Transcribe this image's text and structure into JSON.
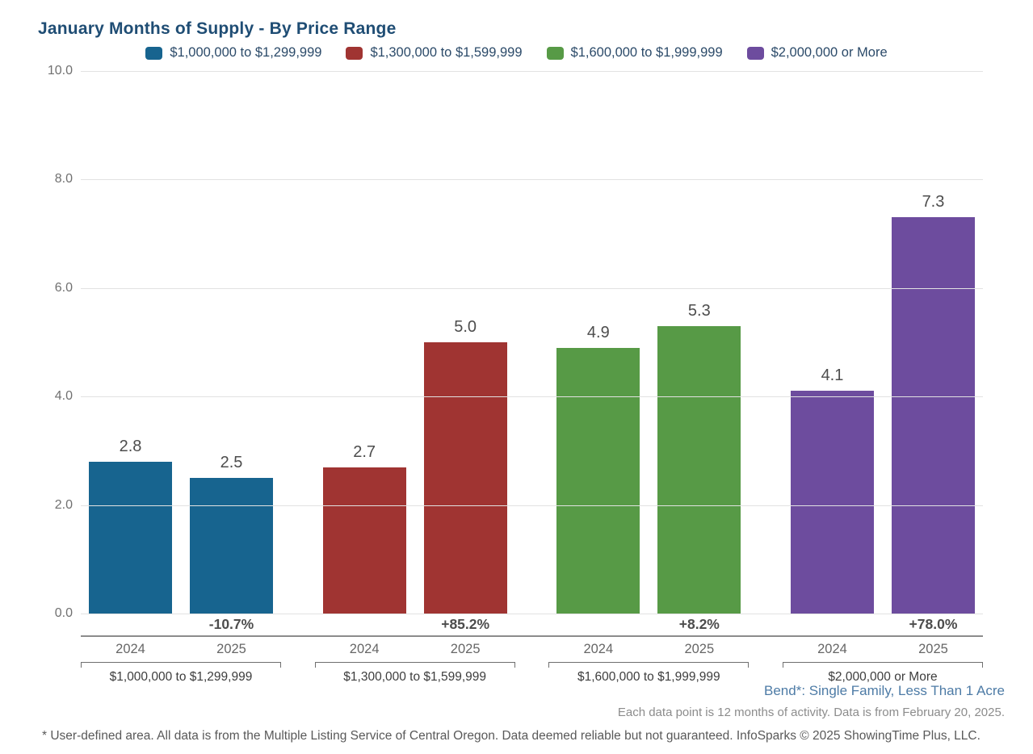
{
  "title": "January Months of Supply - By Price Range",
  "chart_data": {
    "type": "bar",
    "title": "January Months of Supply - By Price Range",
    "xlabel": "",
    "ylabel": "",
    "ylim": [
      0,
      10
    ],
    "yticks": [
      0.0,
      2.0,
      4.0,
      6.0,
      8.0,
      10.0
    ],
    "ytick_labels": [
      "0.0",
      "2.0",
      "4.0",
      "6.0",
      "8.0",
      "10.0"
    ],
    "grid": true,
    "legend_position": "top-center",
    "categories": [
      "2024",
      "2025"
    ],
    "groups": [
      {
        "label": "$1,000,000 to $1,299,999",
        "color": "#17648F",
        "values": [
          2.8,
          2.5
        ],
        "change": "-10.7%"
      },
      {
        "label": "$1,300,000 to $1,599,999",
        "color": "#A03432",
        "values": [
          2.7,
          5.0
        ],
        "change": "+85.2%"
      },
      {
        "label": "$1,600,000 to $1,999,999",
        "color": "#579A46",
        "values": [
          4.9,
          5.3
        ],
        "change": "+8.2%"
      },
      {
        "label": "$2,000,000 or More",
        "color": "#6D4C9E",
        "values": [
          4.1,
          7.3
        ],
        "change": "+78.0%"
      }
    ]
  },
  "legend": [
    {
      "label": "$1,000,000 to $1,299,999",
      "color": "#17648F"
    },
    {
      "label": "$1,300,000 to $1,599,999",
      "color": "#A03432"
    },
    {
      "label": "$1,600,000 to $1,999,999",
      "color": "#579A46"
    },
    {
      "label": "$2,000,000 or More",
      "color": "#6D4C9E"
    }
  ],
  "notes": {
    "area": "Bend*: Single Family, Less Than 1 Acre",
    "data_note": "Each data point is 12 months of activity. Data is from February 20, 2025.",
    "footer": "* User-defined area. All data is from the Multiple Listing Service of Central Oregon. Data deemed reliable but not guaranteed. InfoSparks © 2025 ShowingTime Plus, LLC."
  }
}
